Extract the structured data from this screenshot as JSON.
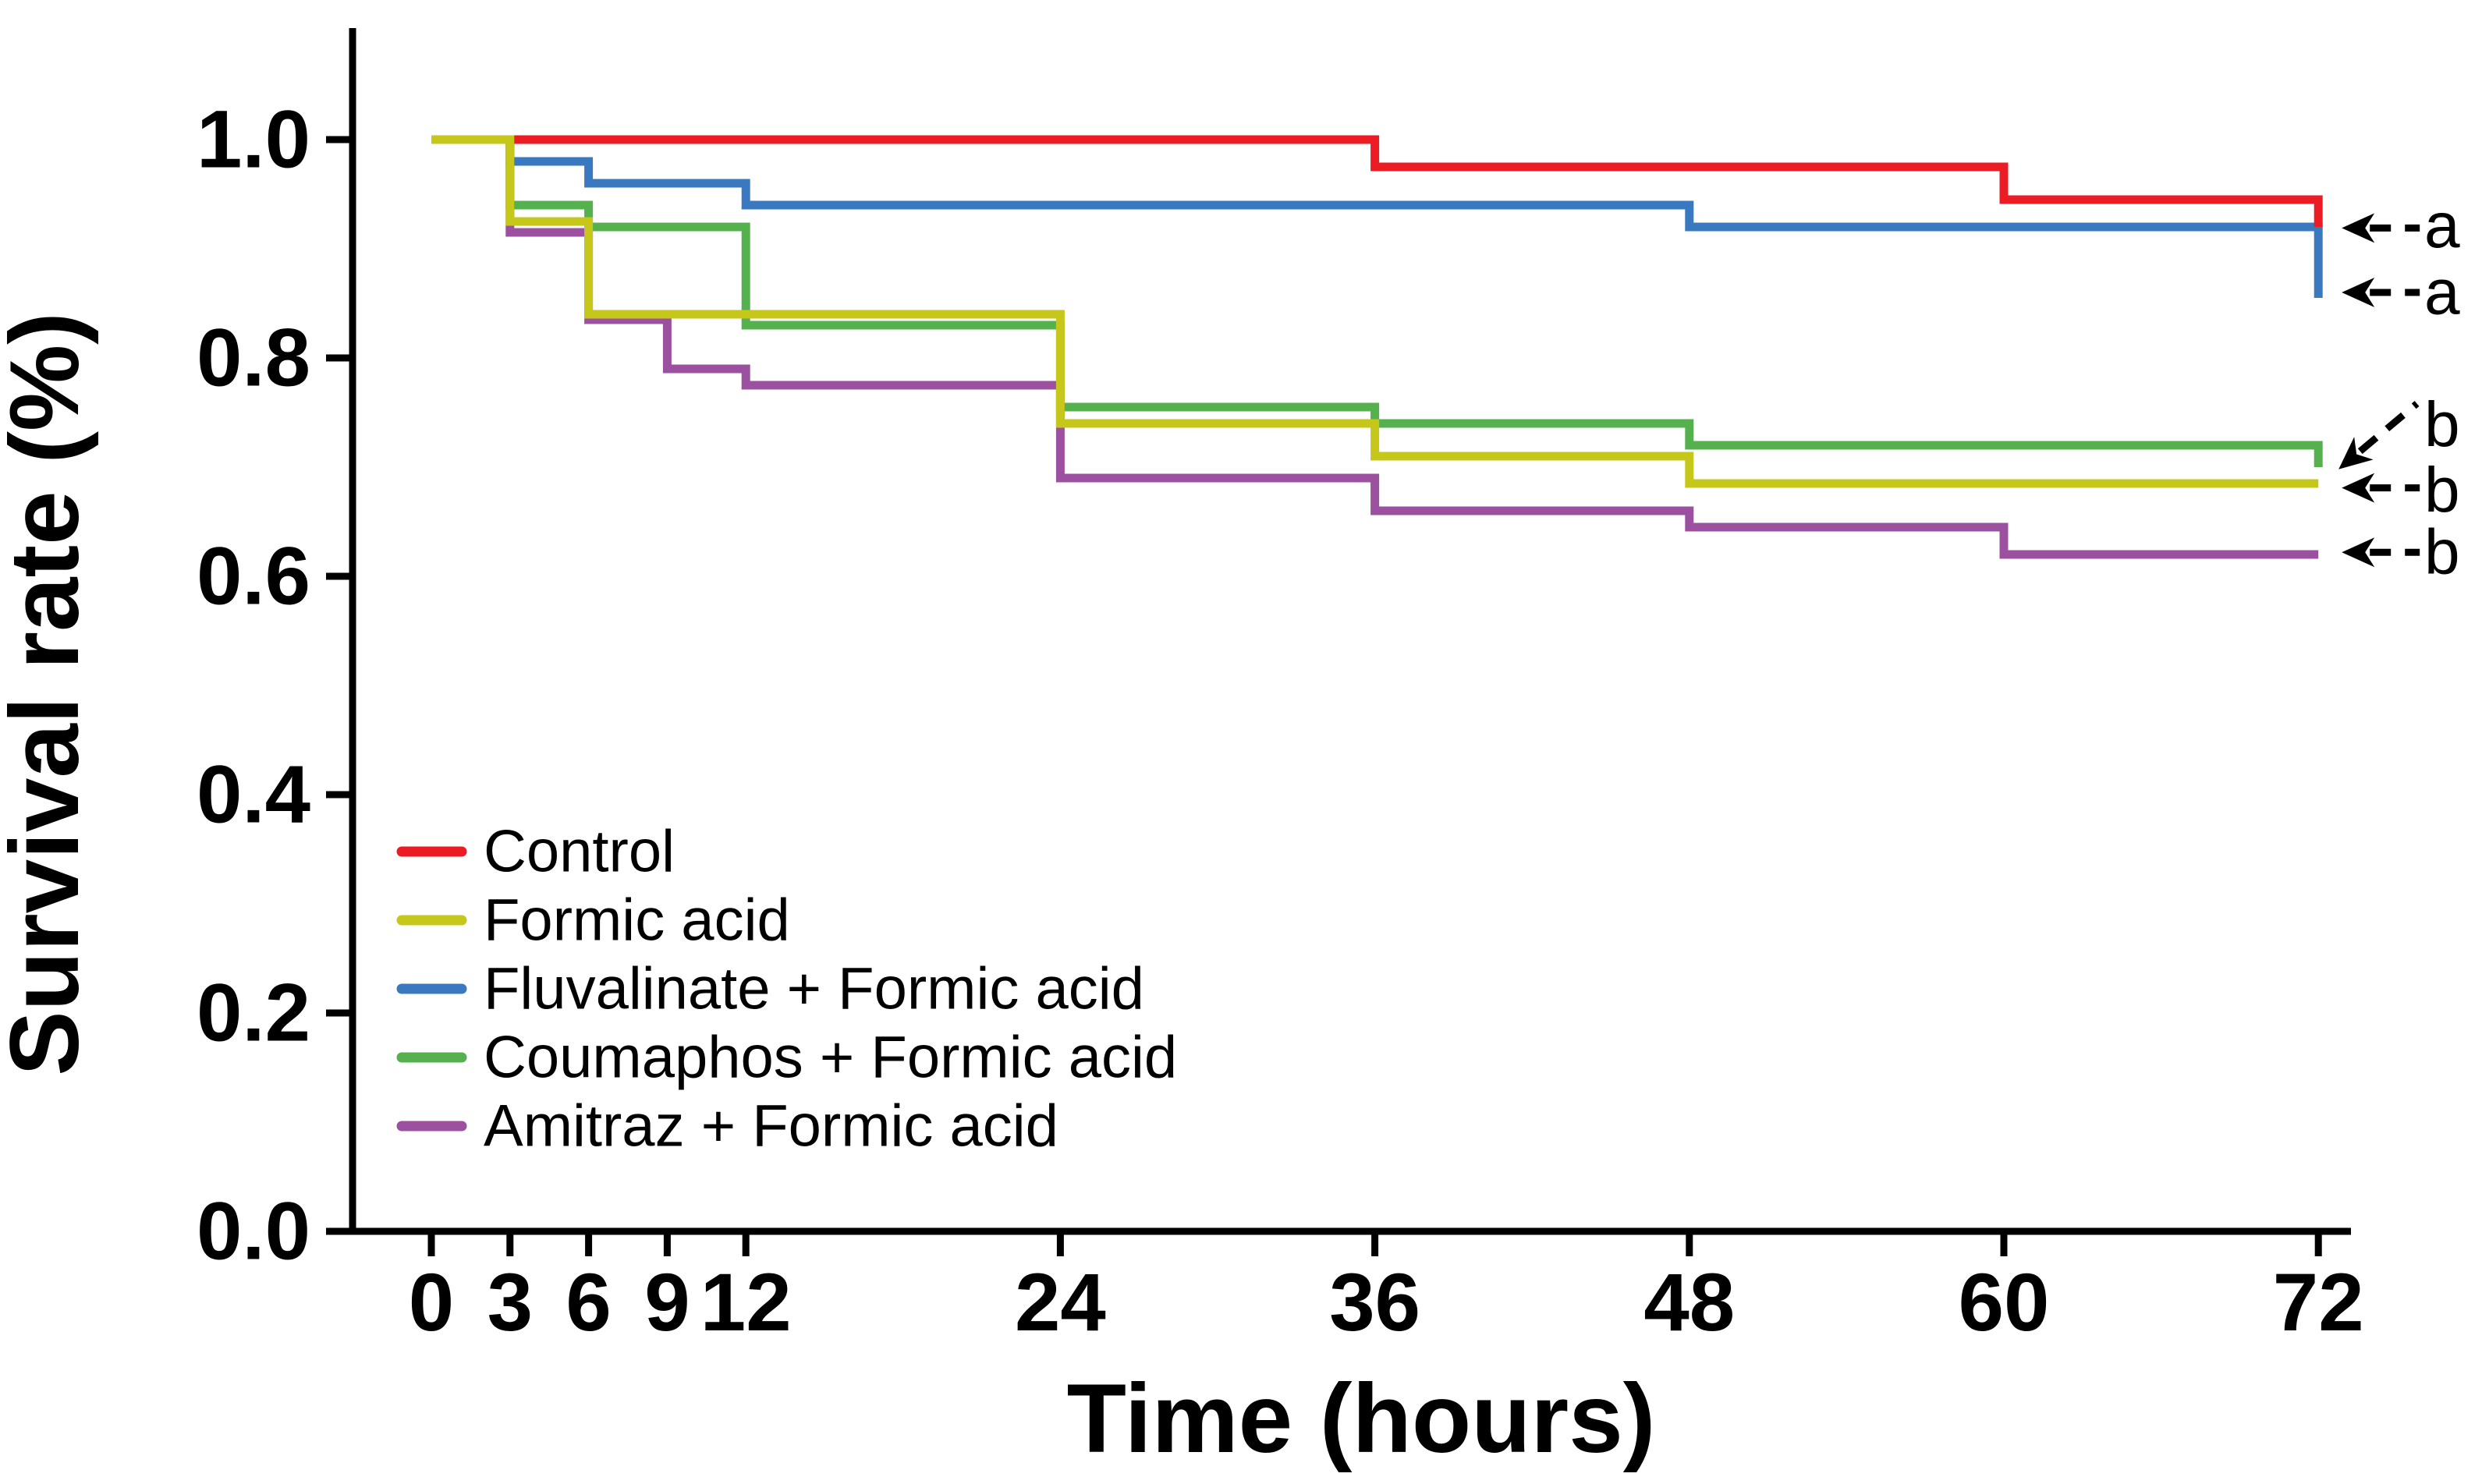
{
  "figure": {
    "background": "#ffffff",
    "axis_color": "#000000"
  },
  "chart_data": {
    "type": "line",
    "subtype": "kaplan-meier-step-survival",
    "title": "",
    "xlabel": "Time (hours)",
    "ylabel": "Survival rate (%)",
    "xlim": [
      0,
      72
    ],
    "ylim": [
      0.0,
      1.0
    ],
    "grid": false,
    "legend_position": "lower-left",
    "x_ticks": [
      {
        "label": "0",
        "value": 0
      },
      {
        "label": "3",
        "value": 3
      },
      {
        "label": "6",
        "value": 6
      },
      {
        "label": "9",
        "value": 9
      },
      {
        "label": "12",
        "value": 12
      },
      {
        "label": "24",
        "value": 24
      },
      {
        "label": "36",
        "value": 36
      },
      {
        "label": "48",
        "value": 48
      },
      {
        "label": "60",
        "value": 60
      },
      {
        "label": "72",
        "value": 72
      }
    ],
    "y_ticks": [
      {
        "label": "1.0",
        "value": 1.0
      },
      {
        "label": "0.8",
        "value": 0.8
      },
      {
        "label": "0.6",
        "value": 0.6
      },
      {
        "label": "0.4",
        "value": 0.4
      },
      {
        "label": "0.2",
        "value": 0.2
      },
      {
        "label": "0.0",
        "value": 0.0
      }
    ],
    "series": [
      {
        "name": "Control",
        "color": "#EC1C24",
        "steps": [
          [
            0,
            1.0
          ],
          [
            36,
            0.975
          ],
          [
            60,
            0.945
          ],
          [
            72,
            0.92
          ]
        ]
      },
      {
        "name": "Formic acid",
        "color": "#C5C71B",
        "steps": [
          [
            0,
            1.0
          ],
          [
            3,
            0.925
          ],
          [
            6,
            0.84
          ],
          [
            24,
            0.74
          ],
          [
            36,
            0.71
          ],
          [
            48,
            0.685
          ]
        ]
      },
      {
        "name": "Fluvalinate + Formic acid",
        "color": "#3A79BF",
        "steps": [
          [
            0,
            1.0
          ],
          [
            3,
            0.98
          ],
          [
            6,
            0.96
          ],
          [
            12,
            0.94
          ],
          [
            48,
            0.92
          ],
          [
            72,
            0.855
          ]
        ]
      },
      {
        "name": "Coumaphos + Formic acid",
        "color": "#55B14E",
        "steps": [
          [
            0,
            1.0
          ],
          [
            3,
            0.94
          ],
          [
            6,
            0.92
          ],
          [
            12,
            0.83
          ],
          [
            24,
            0.755
          ],
          [
            36,
            0.74
          ],
          [
            48,
            0.72
          ],
          [
            72,
            0.7
          ]
        ]
      },
      {
        "name": "Amitraz + Formic acid",
        "color": "#9B51A0",
        "steps": [
          [
            0,
            1.0
          ],
          [
            3,
            0.915
          ],
          [
            6,
            0.835
          ],
          [
            9,
            0.79
          ],
          [
            12,
            0.775
          ],
          [
            24,
            0.69
          ],
          [
            36,
            0.66
          ],
          [
            48,
            0.645
          ],
          [
            60,
            0.62
          ]
        ]
      }
    ],
    "annotations": [
      {
        "label": "a",
        "style": "dashed-horizontal",
        "target_value": 0.919,
        "label_value": 0.921
      },
      {
        "label": "a",
        "style": "dashed-horizontal",
        "target_value": 0.86,
        "label_value": 0.86
      },
      {
        "label": "b",
        "style": "dashed-diagonal",
        "target_value": 0.698,
        "label_value": 0.739
      },
      {
        "label": "b",
        "style": "dashed-horizontal",
        "target_value": 0.681,
        "label_value": 0.679
      },
      {
        "label": "b",
        "style": "dashed-horizontal",
        "target_value": 0.622,
        "label_value": 0.622
      }
    ]
  }
}
